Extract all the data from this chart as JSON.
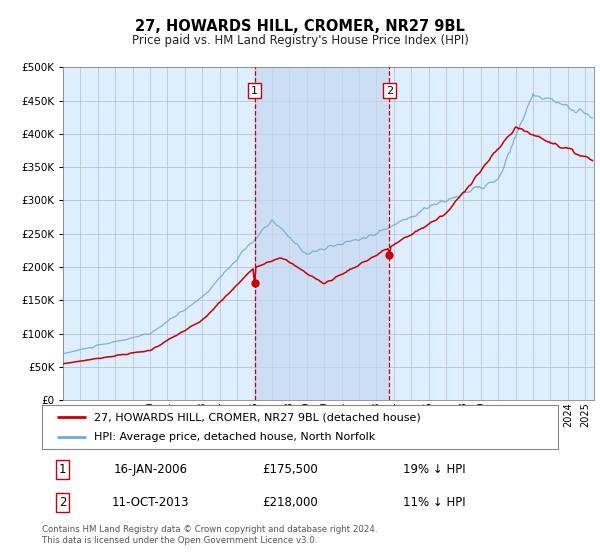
{
  "title": "27, HOWARDS HILL, CROMER, NR27 9BL",
  "subtitle": "Price paid vs. HM Land Registry's House Price Index (HPI)",
  "legend_line1": "27, HOWARDS HILL, CROMER, NR27 9BL (detached house)",
  "legend_line2": "HPI: Average price, detached house, North Norfolk",
  "sale1_date": "16-JAN-2006",
  "sale1_price": 175500,
  "sale1_label": "19% ↓ HPI",
  "sale2_date": "11-OCT-2013",
  "sale2_price": 218000,
  "sale2_label": "11% ↓ HPI",
  "footer": "Contains HM Land Registry data © Crown copyright and database right 2024.\nThis data is licensed under the Open Government Licence v3.0.",
  "hpi_color": "#6baed6",
  "price_color": "#cc0000",
  "vline_color": "#cc0000",
  "bg_color": "#ddeeff",
  "highlight_color": "#c5d8f0",
  "plot_bg": "#ffffff",
  "ylim": [
    0,
    500000
  ],
  "yticks": [
    0,
    50000,
    100000,
    150000,
    200000,
    250000,
    300000,
    350000,
    400000,
    450000,
    500000
  ],
  "xmin": 1995,
  "xmax": 2025.5
}
